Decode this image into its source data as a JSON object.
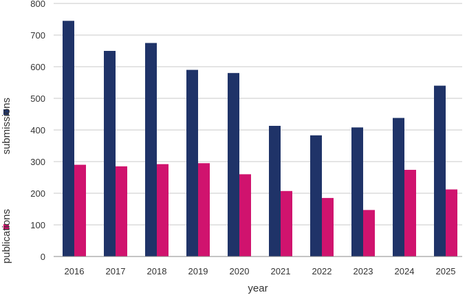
{
  "chart_data": {
    "type": "bar",
    "categories": [
      "2016",
      "2017",
      "2018",
      "2019",
      "2020",
      "2021",
      "2022",
      "2023",
      "2024",
      "2025"
    ],
    "series": [
      {
        "name": "submissions",
        "values": [
          745,
          650,
          675,
          590,
          580,
          413,
          383,
          408,
          438,
          540
        ],
        "color": "#1f3368"
      },
      {
        "name": "publications",
        "values": [
          290,
          285,
          292,
          295,
          260,
          207,
          185,
          147,
          274,
          212
        ],
        "color": "#d0136e"
      }
    ],
    "xlabel": "year",
    "ylabel": "",
    "ylim": [
      0,
      800
    ],
    "yticks": [
      0,
      100,
      200,
      300,
      400,
      500,
      600,
      700,
      800
    ],
    "grid": true,
    "legend": "left-vertical"
  }
}
